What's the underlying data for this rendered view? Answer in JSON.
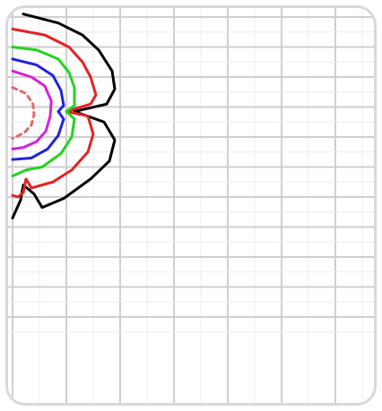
{
  "chart_data": {
    "type": "line",
    "title": "",
    "xlabel": "",
    "ylabel": "",
    "grid": true,
    "legend": "none",
    "xlim": [
      0,
      10
    ],
    "ylim": [
      0,
      10
    ],
    "series": [
      {
        "color": "#000000",
        "dash": "solid",
        "points": [
          [
            0.2,
            10.1
          ],
          [
            0.85,
            9.8
          ],
          [
            1.3,
            9.4
          ],
          [
            1.6,
            8.9
          ],
          [
            1.85,
            8.2
          ],
          [
            1.9,
            7.6
          ],
          [
            1.75,
            7.1
          ],
          [
            1.15,
            6.85
          ],
          [
            1.7,
            6.5
          ],
          [
            1.9,
            5.9
          ],
          [
            1.8,
            5.2
          ],
          [
            1.45,
            4.6
          ],
          [
            0.95,
            3.95
          ],
          [
            0.55,
            3.65
          ],
          [
            0.4,
            4.1
          ],
          [
            0.2,
            4.4
          ],
          [
            0.15,
            3.9
          ],
          [
            0.05,
            3.5
          ],
          [
            0.0,
            3.3
          ]
        ]
      },
      {
        "color": "#e32222",
        "dash": "solid",
        "points": [
          [
            0.0,
            9.6
          ],
          [
            0.6,
            9.4
          ],
          [
            1.05,
            9.0
          ],
          [
            1.3,
            8.5
          ],
          [
            1.45,
            8.0
          ],
          [
            1.55,
            7.4
          ],
          [
            1.45,
            7.1
          ],
          [
            1.0,
            6.85
          ],
          [
            1.4,
            6.7
          ],
          [
            1.5,
            6.1
          ],
          [
            1.4,
            5.5
          ],
          [
            1.1,
            4.9
          ],
          [
            0.75,
            4.5
          ],
          [
            0.35,
            4.3
          ],
          [
            0.25,
            4.6
          ],
          [
            0.2,
            4.15
          ],
          [
            0.1,
            4.0
          ],
          [
            0.0,
            4.05
          ]
        ]
      },
      {
        "color": "#22d422",
        "dash": "solid",
        "points": [
          [
            0.0,
            9.0
          ],
          [
            0.45,
            8.9
          ],
          [
            0.85,
            8.6
          ],
          [
            1.05,
            8.15
          ],
          [
            1.15,
            7.65
          ],
          [
            1.15,
            7.05
          ],
          [
            1.0,
            6.85
          ],
          [
            1.15,
            6.6
          ],
          [
            1.1,
            6.0
          ],
          [
            0.9,
            5.45
          ],
          [
            0.55,
            5.0
          ],
          [
            0.25,
            4.9
          ],
          [
            0.0,
            4.7
          ]
        ]
      },
      {
        "color": "#2222e0",
        "dash": "solid",
        "points": [
          [
            0.0,
            8.6
          ],
          [
            0.45,
            8.4
          ],
          [
            0.75,
            8.05
          ],
          [
            0.9,
            7.55
          ],
          [
            0.95,
            7.05
          ],
          [
            0.85,
            6.85
          ],
          [
            0.95,
            6.6
          ],
          [
            0.85,
            6.05
          ],
          [
            0.65,
            5.6
          ],
          [
            0.35,
            5.3
          ],
          [
            0.0,
            5.25
          ]
        ]
      },
      {
        "color": "#d622d6",
        "dash": "solid",
        "points": [
          [
            0.0,
            8.2
          ],
          [
            0.35,
            8.0
          ],
          [
            0.6,
            7.7
          ],
          [
            0.72,
            7.2
          ],
          [
            0.7,
            6.7
          ],
          [
            0.62,
            6.2
          ],
          [
            0.45,
            5.85
          ],
          [
            0.2,
            5.65
          ],
          [
            0.0,
            5.6
          ]
        ]
      },
      {
        "color": "#e36a6a",
        "dash": "dashed",
        "points": [
          [
            0.0,
            7.65
          ],
          [
            0.25,
            7.45
          ],
          [
            0.38,
            7.1
          ],
          [
            0.4,
            6.75
          ],
          [
            0.35,
            6.4
          ],
          [
            0.22,
            6.15
          ],
          [
            0.0,
            5.95
          ]
        ]
      }
    ]
  }
}
